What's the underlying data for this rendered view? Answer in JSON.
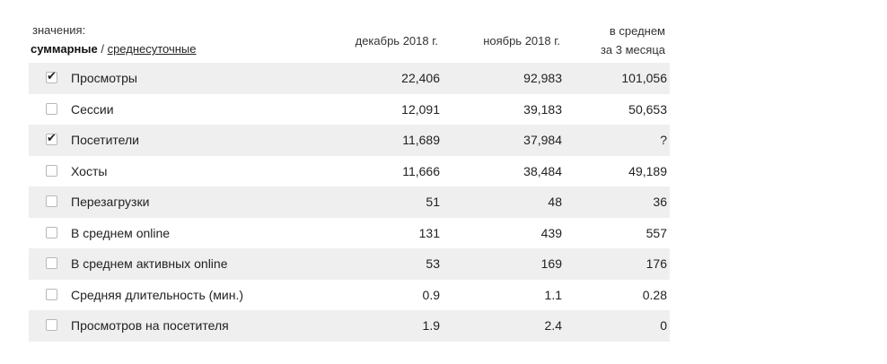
{
  "header": {
    "values_label": "значения:",
    "mode_active": "суммарные",
    "mode_separator": " / ",
    "mode_link": "среднесуточные",
    "columns": [
      "декабрь 2018 г.",
      "ноябрь 2018 г."
    ],
    "avg_column": [
      "в среднем",
      "за 3 месяца"
    ]
  },
  "rows": [
    {
      "label": "Просмотры",
      "checked": true,
      "dec": "22,406",
      "nov": "92,983",
      "avg": "101,056"
    },
    {
      "label": "Сессии",
      "checked": false,
      "dec": "12,091",
      "nov": "39,183",
      "avg": "50,653"
    },
    {
      "label": "Посетители",
      "checked": true,
      "dec": "11,689",
      "nov": "37,984",
      "avg": "?"
    },
    {
      "label": "Хосты",
      "checked": false,
      "dec": "11,666",
      "nov": "38,484",
      "avg": "49,189"
    },
    {
      "label": "Перезагрузки",
      "checked": false,
      "dec": "51",
      "nov": "48",
      "avg": "36"
    },
    {
      "label": "В среднем online",
      "checked": false,
      "dec": "131",
      "nov": "439",
      "avg": "557"
    },
    {
      "label": "В среднем активных online",
      "checked": false,
      "dec": "53",
      "nov": "169",
      "avg": "176"
    },
    {
      "label": "Средняя длительность (мин.)",
      "checked": false,
      "dec": "0.9",
      "nov": "1.1",
      "avg": "0.28"
    },
    {
      "label": "Просмотров на посетителя",
      "checked": false,
      "dec": "1.9",
      "nov": "2.4",
      "avg": "0"
    }
  ],
  "icons": {
    "check": "check-icon"
  },
  "colors": {
    "row_shade": "#efefef",
    "text": "#222222"
  }
}
